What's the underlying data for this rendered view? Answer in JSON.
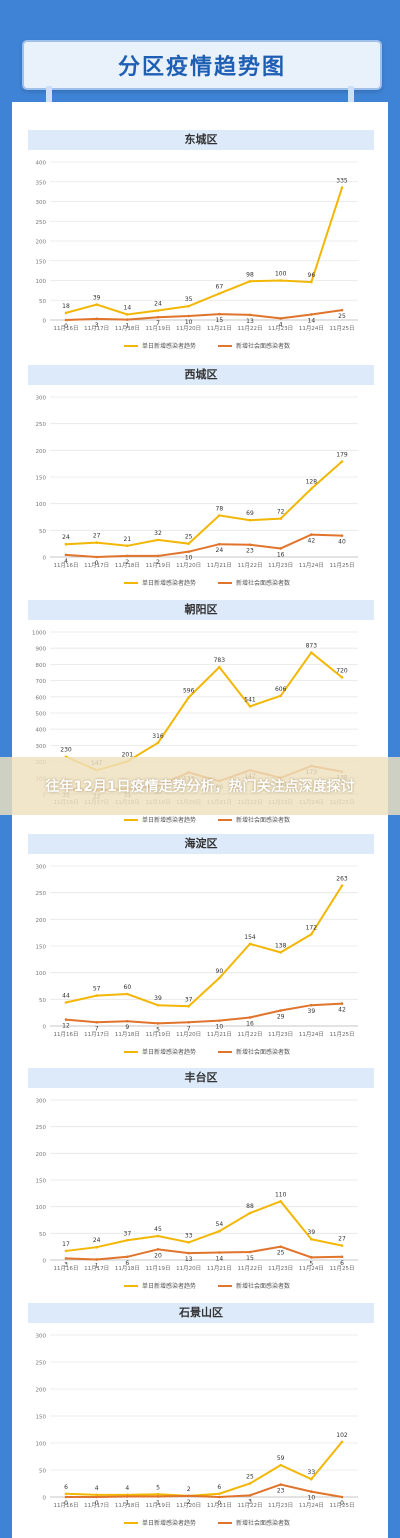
{
  "page": {
    "title": "分区疫情趋势图",
    "banner": "往年12月1日疫情走势分析，热门关注点深度探讨"
  },
  "colors": {
    "series1": "#f2b705",
    "series2": "#e0742c"
  },
  "chart_data": [
    {
      "type": "line",
      "title": "东城区",
      "categories": [
        "11月16日",
        "11月17日",
        "11月18日",
        "11月19日",
        "11月20日",
        "11月21日",
        "11月22日",
        "11月23日",
        "11月24日",
        "11月25日"
      ],
      "ylim": [
        0,
        400
      ],
      "yticks": [
        0,
        50,
        100,
        150,
        200,
        250,
        300,
        350,
        400
      ],
      "series": [
        {
          "name": "单日新增感染者趋势",
          "values": [
            18,
            39,
            14,
            24,
            35,
            67,
            98,
            100,
            96,
            335
          ]
        },
        {
          "name": "新增社会面感染者数",
          "values": [
            0,
            3,
            1,
            7,
            10,
            15,
            13,
            4,
            14,
            25
          ]
        }
      ]
    },
    {
      "type": "line",
      "title": "西城区",
      "categories": [
        "11月16日",
        "11月17日",
        "11月18日",
        "11月19日",
        "11月20日",
        "11月21日",
        "11月22日",
        "11月23日",
        "11月24日",
        "11月25日"
      ],
      "ylim": [
        0,
        300
      ],
      "yticks": [
        0,
        50,
        100,
        150,
        200,
        250,
        300
      ],
      "series": [
        {
          "name": "单日新增感染者趋势",
          "values": [
            24,
            27,
            21,
            32,
            25,
            78,
            69,
            72,
            128,
            179
          ]
        },
        {
          "name": "新增社会面感染者数",
          "values": [
            4,
            0,
            2,
            2,
            10,
            24,
            23,
            16,
            42,
            40
          ]
        }
      ]
    },
    {
      "type": "line",
      "title": "朝阳区",
      "categories": [
        "11月16日",
        "11月17日",
        "11月18日",
        "11月19日",
        "11月20日",
        "11月21日",
        "11月22日",
        "11月23日",
        "11月24日",
        "11月25日"
      ],
      "ylim": [
        0,
        1000
      ],
      "yticks": [
        0,
        100,
        200,
        300,
        400,
        500,
        600,
        700,
        800,
        900,
        1000
      ],
      "series": [
        {
          "name": "单日新增感染者趋势",
          "values": [
            230,
            147,
            201,
            316,
            596,
            783,
            541,
            606,
            873,
            720
          ]
        },
        {
          "name": "新增社会面感染者数",
          "values": [
            31,
            22,
            31,
            50,
            133,
            80,
            147,
            100,
            173,
            138
          ]
        }
      ]
    },
    {
      "type": "line",
      "title": "海淀区",
      "categories": [
        "11月16日",
        "11月17日",
        "11月18日",
        "11月19日",
        "11月20日",
        "11月21日",
        "11月22日",
        "11月23日",
        "11月24日",
        "11月25日"
      ],
      "ylim": [
        0,
        300
      ],
      "yticks": [
        0,
        50,
        100,
        150,
        200,
        250,
        300
      ],
      "series": [
        {
          "name": "单日新增感染者趋势",
          "values": [
            44,
            57,
            60,
            39,
            37,
            90,
            154,
            138,
            172,
            263
          ]
        },
        {
          "name": "新增社会面感染者数",
          "values": [
            12,
            7,
            9,
            5,
            7,
            10,
            16,
            29,
            39,
            42
          ]
        }
      ]
    },
    {
      "type": "line",
      "title": "丰台区",
      "categories": [
        "11月16日",
        "11月17日",
        "11月18日",
        "11月19日",
        "11月20日",
        "11月21日",
        "11月22日",
        "11月23日",
        "11月24日",
        "11月25日"
      ],
      "ylim": [
        0,
        300
      ],
      "yticks": [
        0,
        50,
        100,
        150,
        200,
        250,
        300
      ],
      "series": [
        {
          "name": "单日新增感染者趋势",
          "values": [
            17,
            24,
            37,
            45,
            33,
            54,
            88,
            110,
            39,
            27
          ]
        },
        {
          "name": "新增社会面感染者数",
          "values": [
            3,
            1,
            6,
            20,
            13,
            14,
            15,
            25,
            5,
            6
          ]
        }
      ]
    },
    {
      "type": "line",
      "title": "石景山区",
      "categories": [
        "11月16日",
        "11月17日",
        "11月18日",
        "11月19日",
        "11月20日",
        "11月21日",
        "11月22日",
        "11月23日",
        "11月24日",
        "11月25日"
      ],
      "ylim": [
        0,
        300
      ],
      "yticks": [
        0,
        50,
        100,
        150,
        200,
        250,
        300
      ],
      "series": [
        {
          "name": "单日新增感染者趋势",
          "values": [
            6,
            4,
            4,
            5,
            2,
            6,
            25,
            59,
            33,
            102
          ]
        },
        {
          "name": "新增社会面感染者数",
          "values": [
            0,
            0,
            1,
            1,
            2,
            0,
            3,
            23,
            10,
            0
          ]
        }
      ]
    }
  ]
}
